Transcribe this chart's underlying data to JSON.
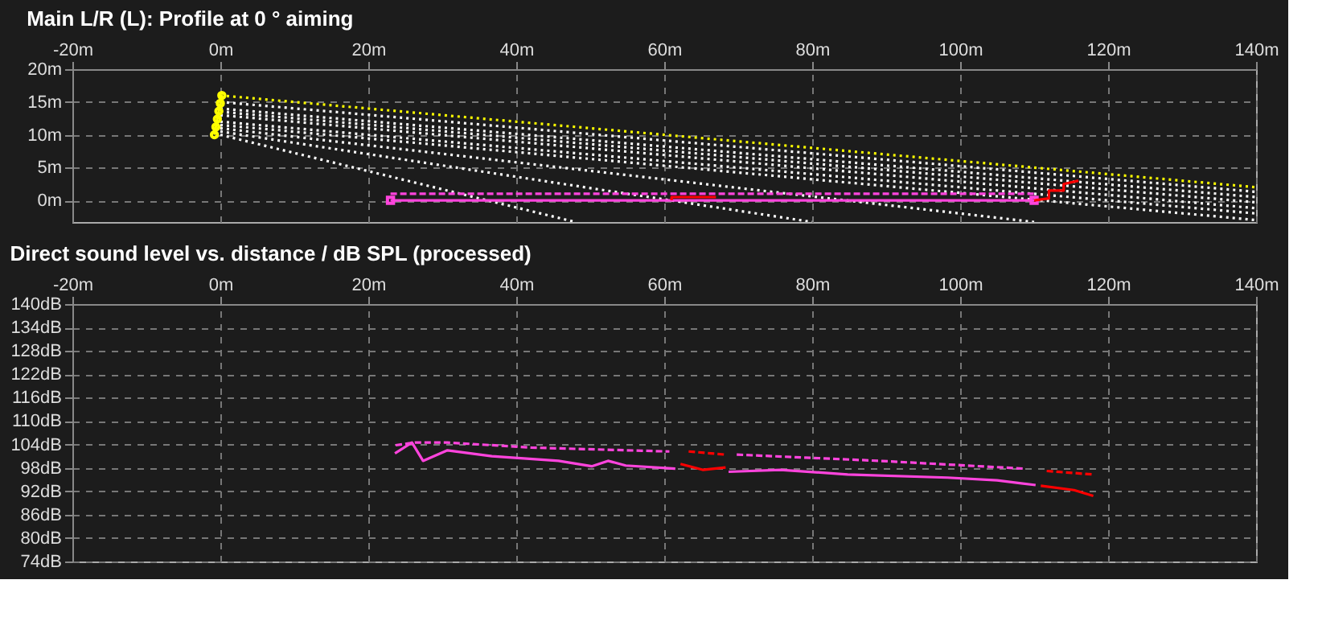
{
  "chart_data": [
    {
      "type": "line",
      "title": "Main L/R (L): Profile at 0 ° aiming",
      "xlim": [
        -20,
        140
      ],
      "ylim": [
        -3.3,
        20
      ],
      "grid": true,
      "xticks": [
        {
          "value": -20,
          "label": "-20m"
        },
        {
          "value": 0,
          "label": "0m"
        },
        {
          "value": 20,
          "label": "20m"
        },
        {
          "value": 40,
          "label": "40m"
        },
        {
          "value": 60,
          "label": "60m"
        },
        {
          "value": 80,
          "label": "80m"
        },
        {
          "value": 100,
          "label": "100m"
        },
        {
          "value": 120,
          "label": "120m"
        },
        {
          "value": 140,
          "label": "140m"
        }
      ],
      "yticks": [
        {
          "value": 0,
          "label": "0m"
        },
        {
          "value": 5,
          "label": "5m"
        },
        {
          "value": 10,
          "label": "10m"
        },
        {
          "value": 15,
          "label": "15m"
        },
        {
          "value": 20,
          "label": "20m"
        }
      ],
      "series": [
        {
          "color": "#ffffff",
          "line_style": "dotted",
          "x": [
            0,
            140
          ],
          "values": [
            15,
            1.3
          ]
        },
        {
          "color": "#ffffff",
          "line_style": "dotted",
          "x": [
            0,
            140
          ],
          "values": [
            14,
            0.5
          ]
        },
        {
          "color": "#ffffff",
          "line_style": "dotted",
          "x": [
            0,
            140
          ],
          "values": [
            13.5,
            -0.3
          ]
        },
        {
          "color": "#ffffff",
          "line_style": "dotted",
          "x": [
            0,
            140
          ],
          "values": [
            13,
            -1.2
          ]
        },
        {
          "color": "#ffffff",
          "line_style": "dotted",
          "x": [
            0,
            140
          ],
          "values": [
            12,
            -2
          ]
        },
        {
          "color": "#ffffff",
          "line_style": "dotted",
          "x": [
            0,
            140
          ],
          "values": [
            11.5,
            -3
          ]
        },
        {
          "color": "#ffffff",
          "line_style": "dotted",
          "x": [
            0,
            110
          ],
          "values": [
            11,
            -3.3
          ]
        },
        {
          "color": "#ffffff",
          "line_style": "dotted",
          "x": [
            0,
            80
          ],
          "values": [
            10.5,
            -3.3
          ]
        },
        {
          "color": "#ffffff",
          "line_style": "dotted",
          "x": [
            0,
            48
          ],
          "values": [
            10,
            -3.3
          ]
        },
        {
          "color": "#ffff00",
          "line_style": "dotted",
          "x": [
            0,
            140
          ],
          "values": [
            16,
            2
          ]
        },
        {
          "color": "#ff44dd",
          "line_style": "dashed",
          "x": [
            23,
            110
          ],
          "values": [
            1,
            1
          ]
        },
        {
          "color": "#ff44dd",
          "line_style": "solid",
          "marker": "square",
          "x": [
            23,
            110
          ],
          "values": [
            0,
            0
          ]
        },
        {
          "color": "#ff0000",
          "line_style": "solid",
          "x": [
            61,
            61,
            67
          ],
          "values": [
            0,
            0.5,
            0.5
          ]
        },
        {
          "color": "#ff0000",
          "line_style": "solid",
          "x": [
            110,
            112,
            112,
            114,
            114,
            116
          ],
          "values": [
            0,
            0.3,
            1.5,
            1.5,
            2.5,
            3
          ]
        },
        {
          "color": "#ffff00",
          "line_style": "solid",
          "marker": "circle",
          "x": [
            -0.8,
            -0.6,
            -0.4,
            -0.2,
            0,
            0.2
          ],
          "values": [
            10,
            11.2,
            12.4,
            13.6,
            14.8,
            16
          ]
        }
      ]
    },
    {
      "type": "line",
      "title": "Direct sound level vs. distance / dB SPL (processed)",
      "xlim": [
        -20,
        140
      ],
      "ylim": [
        74,
        140
      ],
      "grid": true,
      "xticks": [
        {
          "value": -20,
          "label": "-20m"
        },
        {
          "value": 0,
          "label": "0m"
        },
        {
          "value": 20,
          "label": "20m"
        },
        {
          "value": 40,
          "label": "40m"
        },
        {
          "value": 60,
          "label": "60m"
        },
        {
          "value": 80,
          "label": "80m"
        },
        {
          "value": 100,
          "label": "100m"
        },
        {
          "value": 120,
          "label": "120m"
        },
        {
          "value": 140,
          "label": "140m"
        }
      ],
      "yticks": [
        {
          "value": 74,
          "label": "74dB"
        },
        {
          "value": 80,
          "label": "80dB"
        },
        {
          "value": 86,
          "label": "86dB"
        },
        {
          "value": 92,
          "label": "92dB"
        },
        {
          "value": 98,
          "label": "98dB"
        },
        {
          "value": 104,
          "label": "104dB"
        },
        {
          "value": 110,
          "label": "110dB"
        },
        {
          "value": 116,
          "label": "116dB"
        },
        {
          "value": 122,
          "label": "122dB"
        },
        {
          "value": 128,
          "label": "128dB"
        },
        {
          "value": 134,
          "label": "134dB"
        },
        {
          "value": 140,
          "label": "140dB"
        }
      ],
      "series": [
        {
          "color": "#ff44dd",
          "line_style": "dashed",
          "x": [
            23.7,
            26.3,
            30.7,
            42,
            60.7
          ],
          "values": [
            103.8,
            104.5,
            104.5,
            103.2,
            102.2
          ]
        },
        {
          "color": "#ff0000",
          "line_style": "dashed",
          "x": [
            63.3,
            68.3
          ],
          "values": [
            102.2,
            101.4
          ]
        },
        {
          "color": "#ff44dd",
          "line_style": "dashed",
          "x": [
            69.8,
            89.1,
            108.7
          ],
          "values": [
            101.4,
            99.8,
            97.8
          ]
        },
        {
          "color": "#ff0000",
          "line_style": "dashed",
          "x": [
            111.7,
            118
          ],
          "values": [
            97.2,
            96.3
          ]
        },
        {
          "color": "#ff44dd",
          "line_style": "solid",
          "x": [
            23.6,
            25.9,
            27.4,
            30.7,
            36.7,
            45.7,
            50.2,
            52.4,
            54.8,
            61.5
          ],
          "values": [
            101.7,
            104.5,
            99.8,
            102.5,
            101,
            99.8,
            98.4,
            99.8,
            98.6,
            97.8
          ]
        },
        {
          "color": "#ff0000",
          "line_style": "solid",
          "x": [
            62.2,
            65.2,
            68.3
          ],
          "values": [
            99,
            97.5,
            98.1
          ]
        },
        {
          "color": "#ff44dd",
          "line_style": "solid",
          "x": [
            68.7,
            75.7,
            84.8,
            98.3,
            105,
            110.2
          ],
          "values": [
            97,
            97.5,
            96.3,
            95.5,
            94.8,
            93.6
          ]
        },
        {
          "color": "#ff0000",
          "line_style": "solid",
          "x": [
            110.9,
            115.4,
            118
          ],
          "values": [
            93.4,
            92.3,
            90.8
          ]
        }
      ]
    }
  ]
}
